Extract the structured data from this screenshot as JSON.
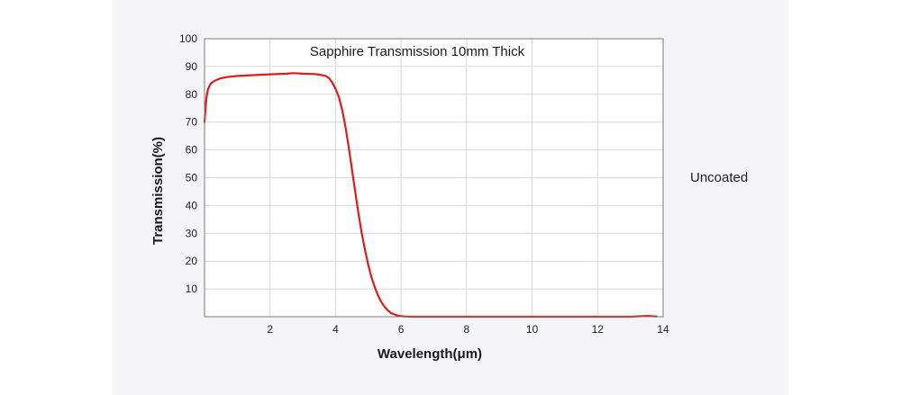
{
  "side_label": "Uncoated",
  "colors": {
    "panel_background": "#f5f5f7",
    "plot_background": "#ffffff",
    "gridline": "#d7d7d7",
    "frame": "#7a7a7a",
    "series": "#e01b1b"
  },
  "chart_data": {
    "type": "line",
    "title": "Sapphire Transmission 10mm Thick",
    "xlabel": "Wavelength(μm)",
    "ylabel": "Transmission(%)",
    "xlim": [
      0,
      14
    ],
    "ylim": [
      0,
      100
    ],
    "x_ticks": [
      2,
      4,
      6,
      8,
      10,
      12,
      14
    ],
    "y_ticks": [
      10,
      20,
      30,
      40,
      50,
      60,
      70,
      80,
      90,
      100
    ],
    "grid": true,
    "legend": "none",
    "series": [
      {
        "x": [
          0.0,
          0.03,
          0.06,
          0.1,
          0.15,
          0.2,
          0.3,
          0.4,
          0.5,
          0.7,
          1.0,
          1.5,
          2.0,
          2.5,
          2.7,
          3.0,
          3.3,
          3.5,
          3.7,
          3.8,
          3.9,
          4.0,
          4.1,
          4.2,
          4.3,
          4.4,
          4.5,
          4.6,
          4.7,
          4.8,
          4.9,
          5.0,
          5.1,
          5.2,
          5.3,
          5.4,
          5.5,
          5.6,
          5.7,
          5.8,
          5.9,
          6.0,
          6.1,
          6.2,
          6.3,
          6.5,
          7.0,
          8.0,
          9.0,
          10.0,
          11.0,
          12.0,
          13.0,
          13.5,
          13.8
        ],
        "y": [
          70,
          75,
          79,
          81.5,
          83,
          84,
          84.8,
          85.3,
          85.8,
          86.2,
          86.6,
          86.9,
          87.2,
          87.4,
          87.6,
          87.4,
          87.3,
          87.1,
          86.6,
          85.8,
          84.2,
          82,
          79,
          74.5,
          68.5,
          61,
          53,
          45,
          37,
          30,
          24,
          18.5,
          14,
          10.5,
          7.5,
          5.2,
          3.5,
          2.2,
          1.3,
          0.8,
          0.4,
          0.2,
          0.1,
          0.05,
          0,
          0,
          0,
          0,
          0,
          0,
          0,
          0,
          0,
          0.3,
          0.1
        ]
      }
    ]
  }
}
